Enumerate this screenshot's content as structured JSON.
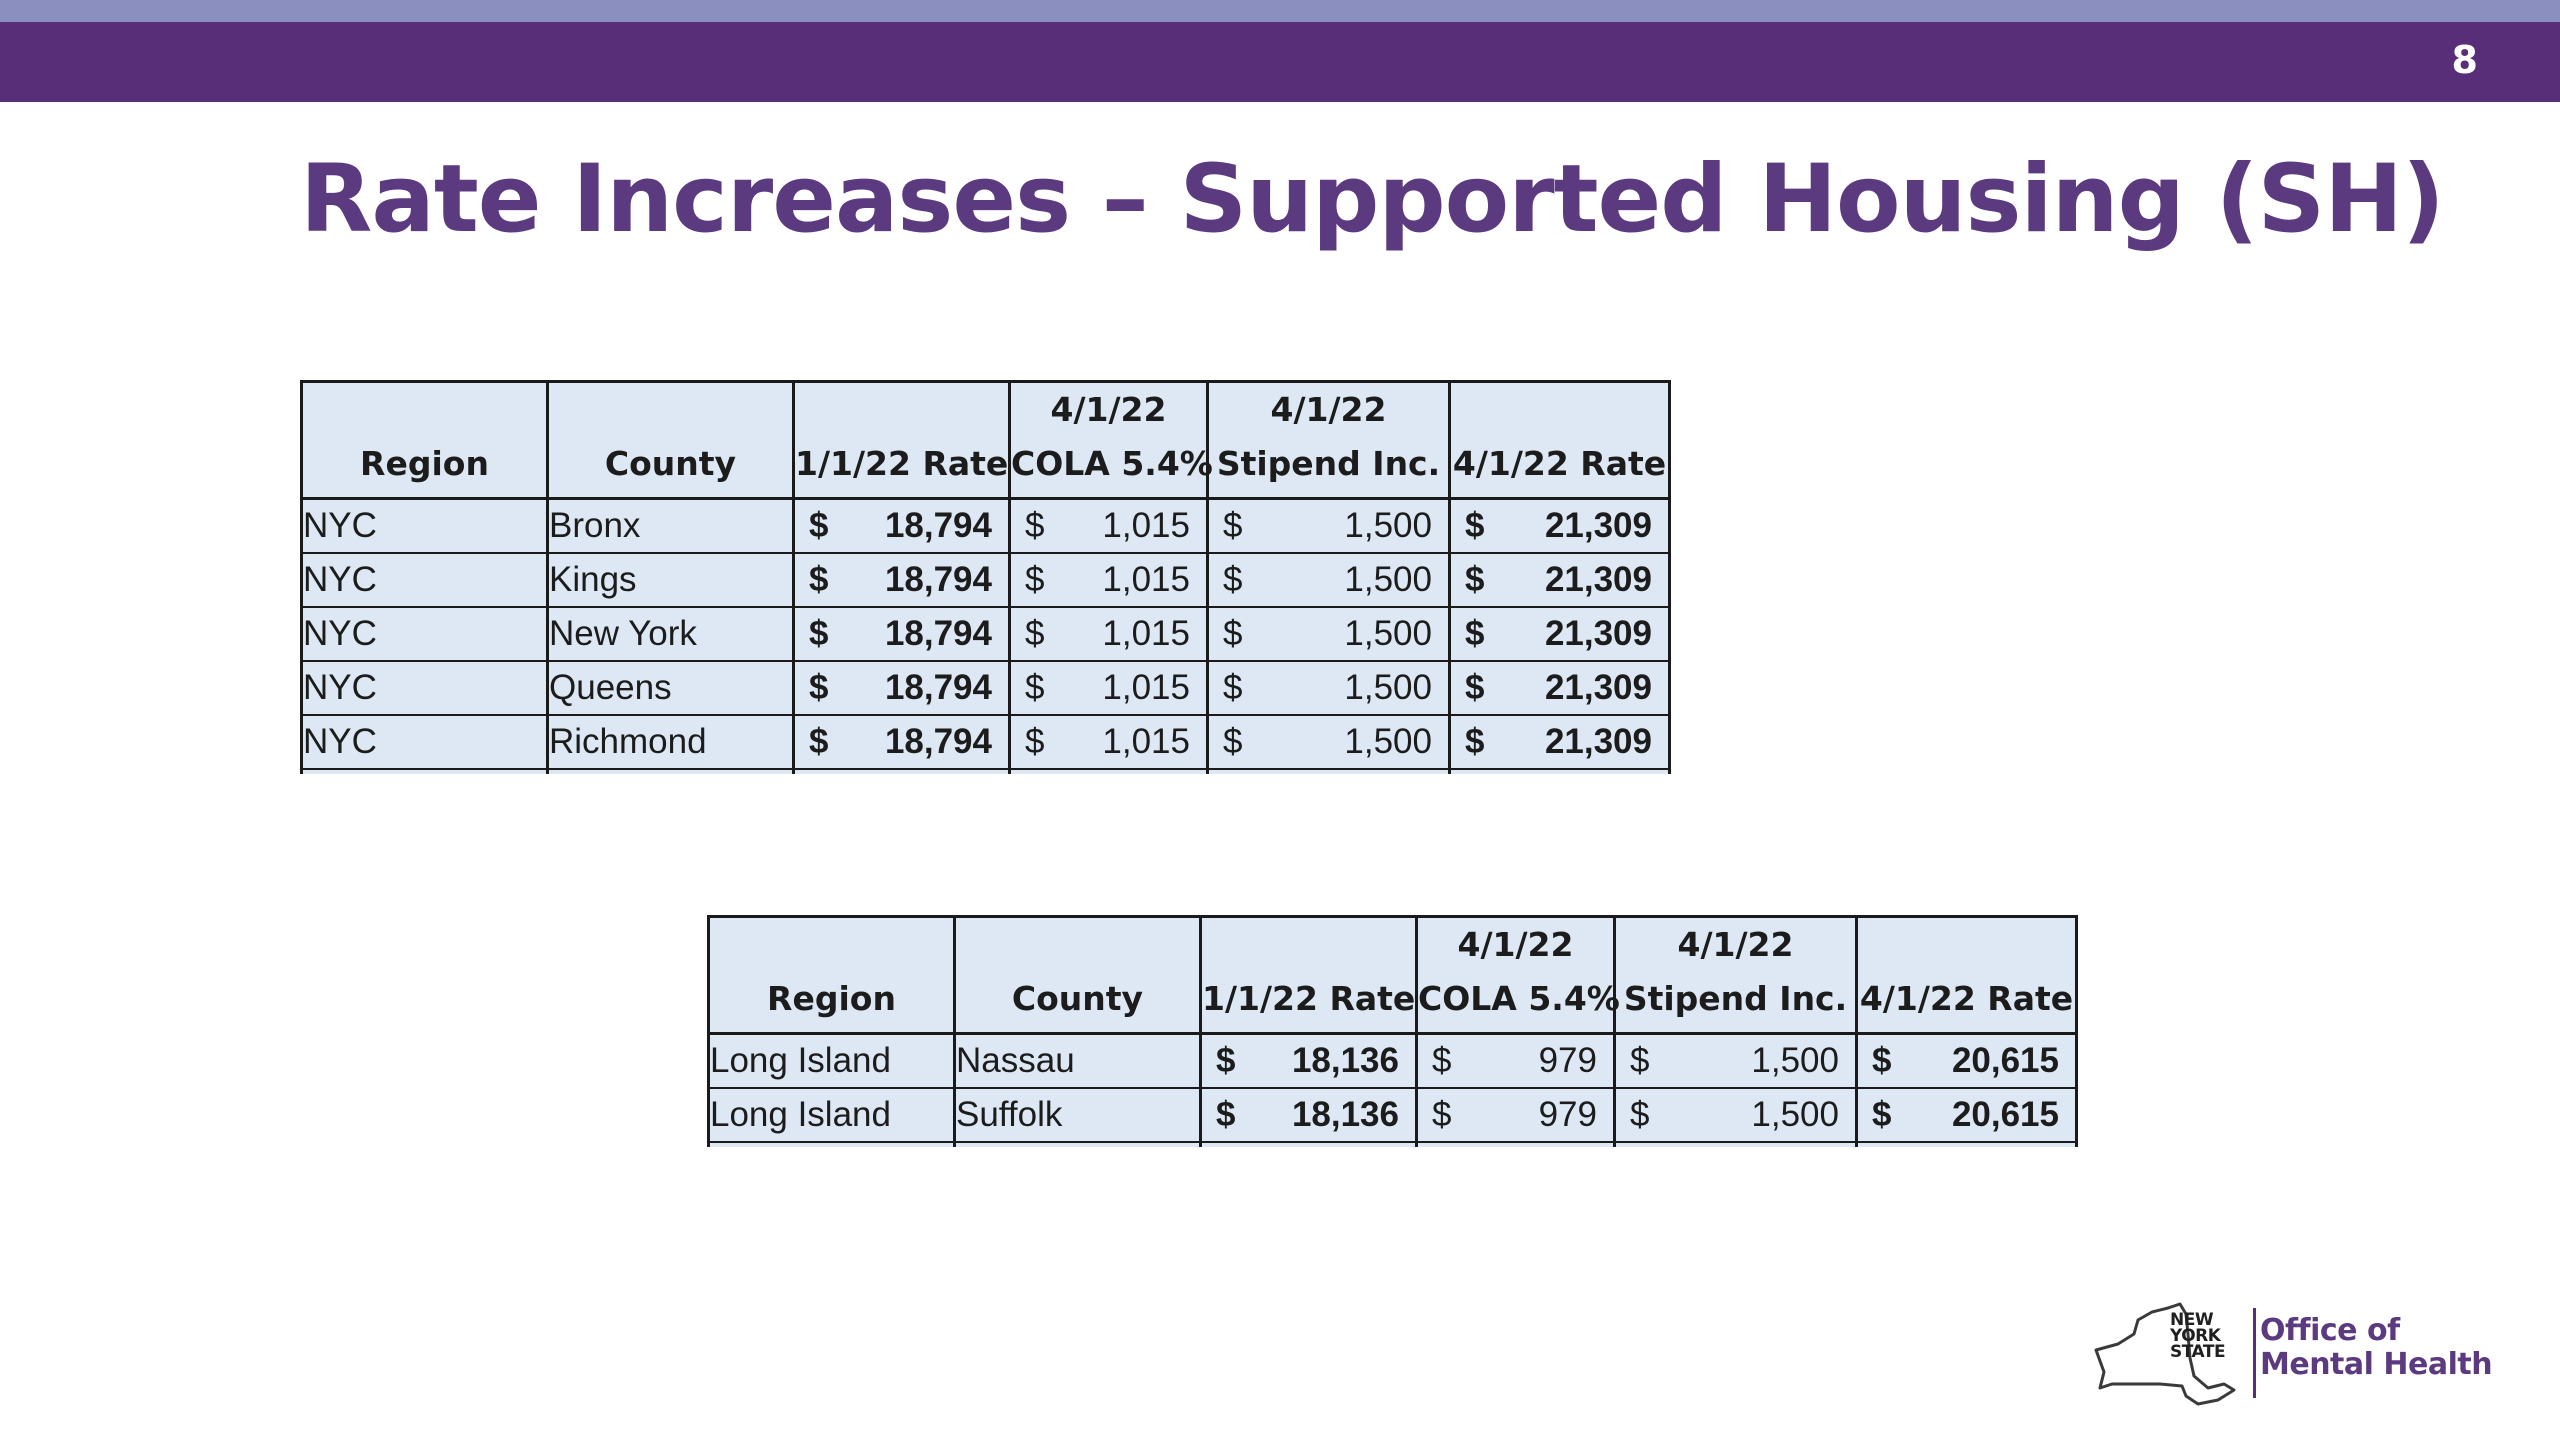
{
  "slide": {
    "page_number": "8",
    "title": "Rate Increases – Supported Housing (SH)"
  },
  "table_headers": [
    {
      "line1": "",
      "line2": "Region"
    },
    {
      "line1": "",
      "line2": "County"
    },
    {
      "line1": "",
      "line2": "1/1/22 Rate"
    },
    {
      "line1": "4/1/22",
      "line2": "COLA 5.4%"
    },
    {
      "line1": "4/1/22",
      "line2": "Stipend Inc."
    },
    {
      "line1": "",
      "line2": "4/1/22 Rate"
    }
  ],
  "currency_symbol": "$",
  "nyc_table": {
    "rows": [
      {
        "region": "NYC",
        "county": "Bronx",
        "rate_jan": "18,794",
        "cola": "1,015",
        "stipend": "1,500",
        "rate_apr": "21,309"
      },
      {
        "region": "NYC",
        "county": "Kings",
        "rate_jan": "18,794",
        "cola": "1,015",
        "stipend": "1,500",
        "rate_apr": "21,309"
      },
      {
        "region": "NYC",
        "county": "New York",
        "rate_jan": "18,794",
        "cola": "1,015",
        "stipend": "1,500",
        "rate_apr": "21,309"
      },
      {
        "region": "NYC",
        "county": "Queens",
        "rate_jan": "18,794",
        "cola": "1,015",
        "stipend": "1,500",
        "rate_apr": "21,309"
      },
      {
        "region": "NYC",
        "county": "Richmond",
        "rate_jan": "18,794",
        "cola": "1,015",
        "stipend": "1,500",
        "rate_apr": "21,309"
      }
    ]
  },
  "long_island_table": {
    "rows": [
      {
        "region": "Long Island",
        "county": "Nassau",
        "rate_jan": "18,136",
        "cola": "979",
        "stipend": "1,500",
        "rate_apr": "20,615"
      },
      {
        "region": "Long Island",
        "county": "Suffolk",
        "rate_jan": "18,136",
        "cola": "979",
        "stipend": "1,500",
        "rate_apr": "20,615"
      }
    ]
  },
  "logo": {
    "state_line1": "NEW",
    "state_line2": "YORK",
    "state_line3": "STATE",
    "office_line1": "Office of",
    "office_line2": "Mental Health"
  },
  "colors": {
    "header_band": "#582e78",
    "top_strip": "#8a8fc0",
    "title": "#5b3a80",
    "table_fill": "#dde8f4"
  }
}
